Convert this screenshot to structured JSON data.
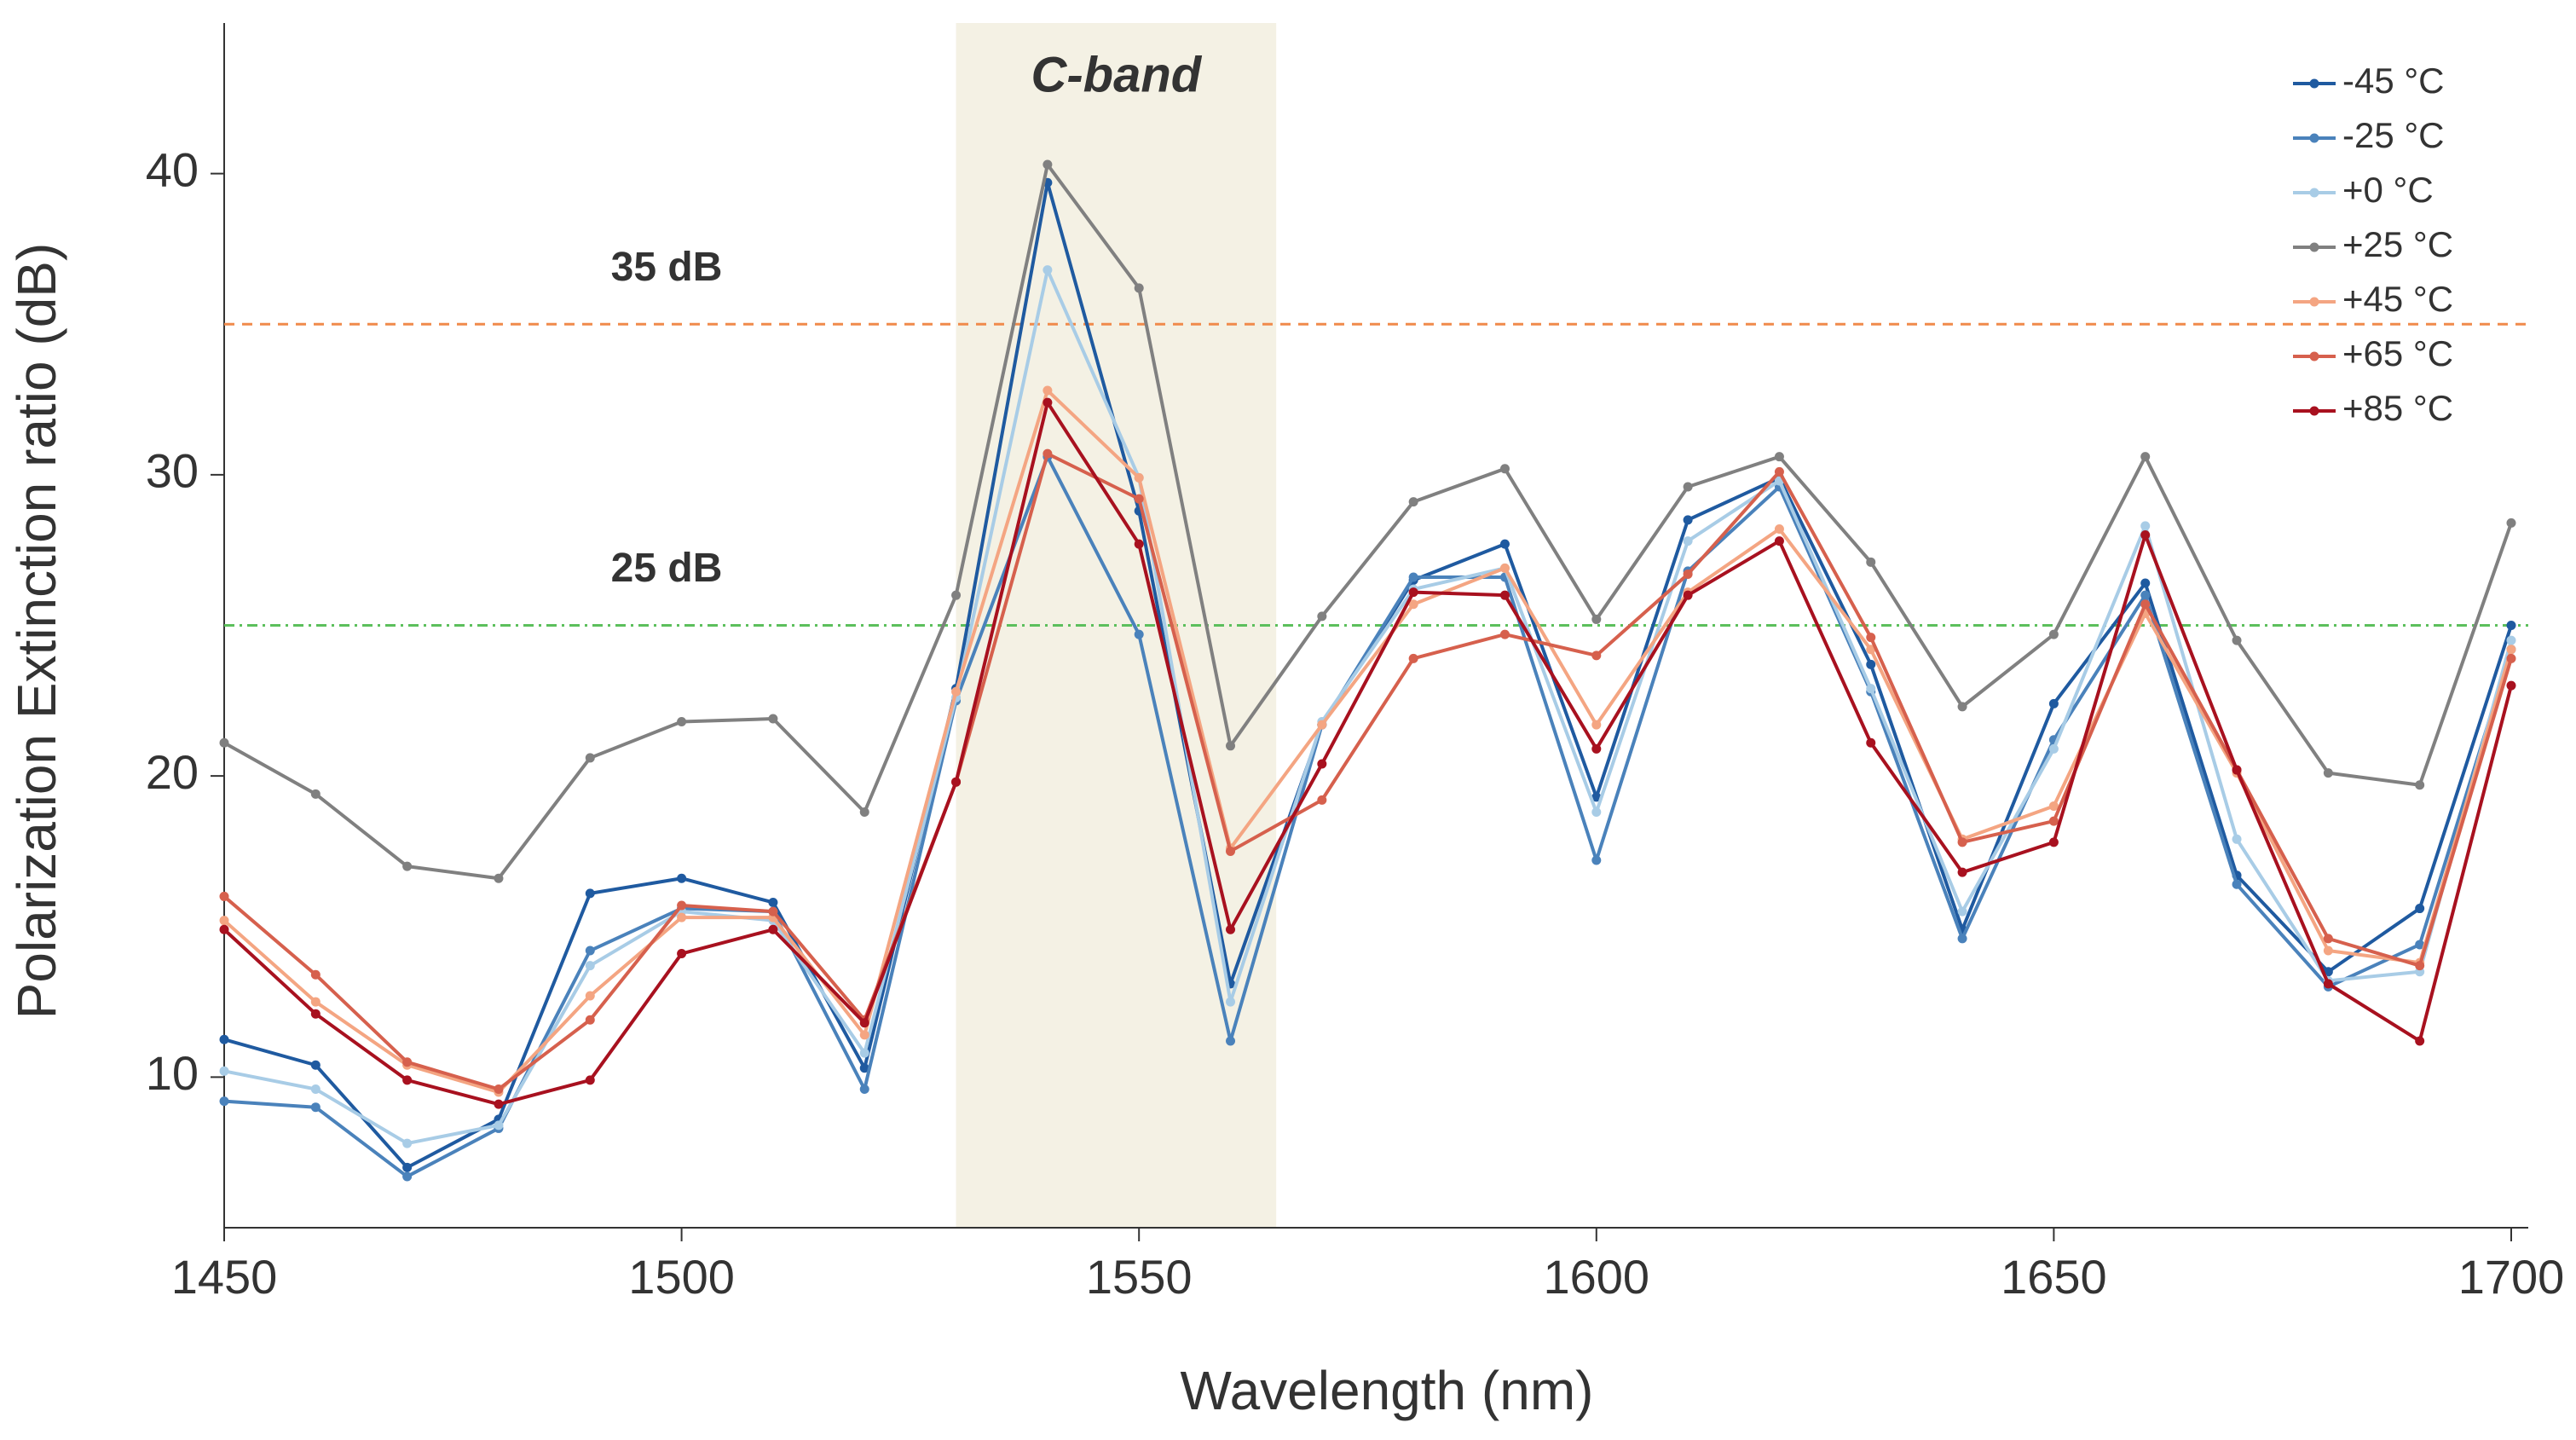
{
  "chart_data": {
    "type": "line",
    "x_label": "Wavelength (nm)",
    "y_label": "Polarization Extinction ratio (dB)",
    "x": [
      1450,
      1460,
      1470,
      1480,
      1490,
      1500,
      1510,
      1520,
      1530,
      1540,
      1550,
      1560,
      1570,
      1580,
      1590,
      1600,
      1610,
      1620,
      1630,
      1640,
      1650,
      1660,
      1670,
      1680,
      1690,
      1700
    ],
    "series": [
      {
        "name": "-45 °C",
        "color": "#1f5aa0",
        "values": [
          11.25,
          10.4,
          7.0,
          8.6,
          16.1,
          16.6,
          15.8,
          10.3,
          22.9,
          39.7,
          28.8,
          13.1,
          21.7,
          26.5,
          27.7,
          19.3,
          28.5,
          29.9,
          23.7,
          14.9,
          22.4,
          26.4,
          16.7,
          13.5,
          15.6,
          25.0
        ]
      },
      {
        "name": "-25 °C",
        "color": "#4a82bb",
        "values": [
          9.2,
          9.0,
          6.7,
          8.3,
          14.2,
          15.6,
          15.5,
          9.6,
          22.5,
          30.6,
          24.7,
          11.2,
          21.7,
          26.6,
          26.6,
          17.2,
          26.8,
          29.6,
          22.8,
          14.6,
          21.2,
          26.0,
          16.4,
          13.0,
          14.4,
          24.2
        ]
      },
      {
        "name": "+0 °C",
        "color": "#a8cce6",
        "values": [
          10.2,
          9.6,
          7.8,
          8.4,
          13.7,
          15.5,
          15.2,
          10.8,
          22.6,
          36.8,
          29.9,
          12.5,
          21.8,
          26.2,
          26.9,
          18.8,
          27.8,
          29.8,
          22.9,
          15.5,
          20.9,
          28.3,
          17.9,
          13.2,
          13.5,
          24.5
        ]
      },
      {
        "name": "+25 °C",
        "color": "#808080",
        "values": [
          21.1,
          19.4,
          17.0,
          16.6,
          20.6,
          21.8,
          21.9,
          18.8,
          26.0,
          40.3,
          36.2,
          21.0,
          25.3,
          29.1,
          30.2,
          25.2,
          29.6,
          30.6,
          27.1,
          22.3,
          24.7,
          30.6,
          24.5,
          20.1,
          19.7,
          28.4
        ]
      },
      {
        "name": "+45 °C",
        "color": "#f4a582",
        "values": [
          15.2,
          12.5,
          10.4,
          9.5,
          12.7,
          15.3,
          15.3,
          11.4,
          22.8,
          32.8,
          29.9,
          17.6,
          21.7,
          25.7,
          26.9,
          21.7,
          26.1,
          28.2,
          24.2,
          17.9,
          19.0,
          25.4,
          20.1,
          14.2,
          13.8,
          24.2
        ]
      },
      {
        "name": "+65 °C",
        "color": "#d6604d",
        "values": [
          16.0,
          13.4,
          10.5,
          9.6,
          11.9,
          15.7,
          15.5,
          11.9,
          19.8,
          30.7,
          29.2,
          17.5,
          19.2,
          23.9,
          24.7,
          24.0,
          26.7,
          30.1,
          24.6,
          17.8,
          18.5,
          25.7,
          20.2,
          14.6,
          13.7,
          23.9
        ]
      },
      {
        "name": "+85 °C",
        "color": "#a8111f",
        "values": [
          14.9,
          12.1,
          9.9,
          9.1,
          9.9,
          14.1,
          14.9,
          11.8,
          19.8,
          32.4,
          27.7,
          14.9,
          20.4,
          26.1,
          26.0,
          20.9,
          26.0,
          27.8,
          21.1,
          16.8,
          17.8,
          28.0,
          20.2,
          13.1,
          11.2,
          23.0
        ]
      }
    ],
    "xlim": [
      1450,
      1700
    ],
    "ylim": [
      5,
      45
    ],
    "xticks": [
      1450,
      1500,
      1550,
      1600,
      1650,
      1700
    ],
    "yticks": [
      10,
      20,
      30,
      40
    ],
    "bands": [
      {
        "label": "C-band",
        "x": [
          1530,
          1565
        ],
        "color": "#f4f1e4"
      }
    ],
    "hlines": [
      {
        "label": "35 dB",
        "value": 35,
        "color": "#f08a4b",
        "dash": "12 9"
      },
      {
        "label": "25 dB",
        "value": 25,
        "color": "#5cbf5c",
        "dash": "12 6 3 6"
      }
    ],
    "legend": "upper-right"
  }
}
